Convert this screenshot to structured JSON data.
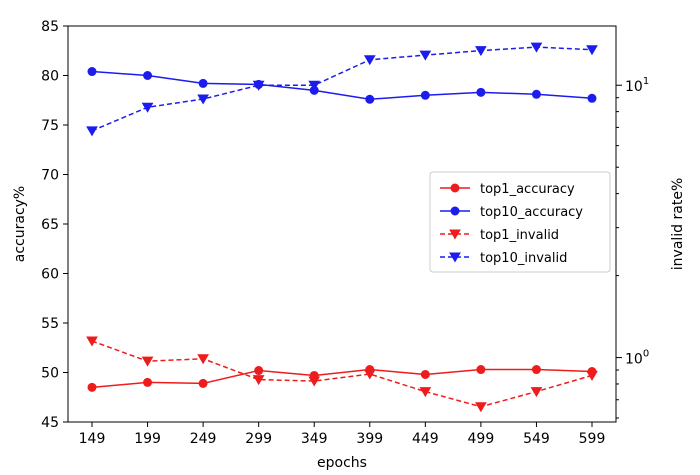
{
  "chart_data": {
    "type": "line",
    "xlabel": "epochs",
    "ylabel_left": "accuracy%",
    "ylabel_right": "invalid rate%",
    "categories": [
      "149",
      "199",
      "249",
      "299",
      "349",
      "399",
      "449",
      "499",
      "549",
      "599"
    ],
    "y_left": {
      "lim": [
        45,
        85
      ],
      "ticks": [
        "45",
        "50",
        "55",
        "60",
        "65",
        "70",
        "75",
        "80",
        "85"
      ],
      "scale": "linear"
    },
    "y_right": {
      "lim": [
        0.58,
        16.5
      ],
      "scale": "log",
      "major_ticks": [
        1,
        10
      ],
      "major_tick_labels": [
        "10",
        "10"
      ],
      "major_tick_exponents": [
        "0",
        "1"
      ],
      "minor_ticks": [
        0.6,
        0.7,
        0.8,
        0.9,
        2,
        3,
        4,
        5,
        6,
        7,
        8,
        9
      ]
    },
    "legend_position": "center-right",
    "series": [
      {
        "name": "top1_accuracy",
        "axis": "left",
        "color": "#ee1c1c",
        "linestyle": "solid",
        "marker": "circle",
        "values": [
          48.5,
          49.0,
          48.9,
          50.2,
          49.7,
          50.3,
          49.8,
          50.3,
          50.3,
          50.1
        ]
      },
      {
        "name": "top10_accuracy",
        "axis": "left",
        "color": "#1c1cee",
        "linestyle": "solid",
        "marker": "circle",
        "values": [
          80.4,
          80.0,
          79.2,
          79.1,
          78.5,
          77.6,
          78.0,
          78.3,
          78.1,
          77.7
        ]
      },
      {
        "name": "top1_invalid",
        "axis": "right",
        "color": "#ee1c1c",
        "linestyle": "dashed",
        "marker": "triangle-down",
        "values": [
          1.15,
          0.97,
          0.99,
          0.83,
          0.82,
          0.87,
          0.75,
          0.66,
          0.75,
          0.86
        ]
      },
      {
        "name": "top10_invalid",
        "axis": "right",
        "color": "#1c1cee",
        "linestyle": "dashed",
        "marker": "triangle-down",
        "values": [
          6.8,
          8.3,
          8.9,
          10.0,
          10.0,
          12.4,
          12.9,
          13.4,
          13.8,
          13.5
        ]
      }
    ]
  }
}
